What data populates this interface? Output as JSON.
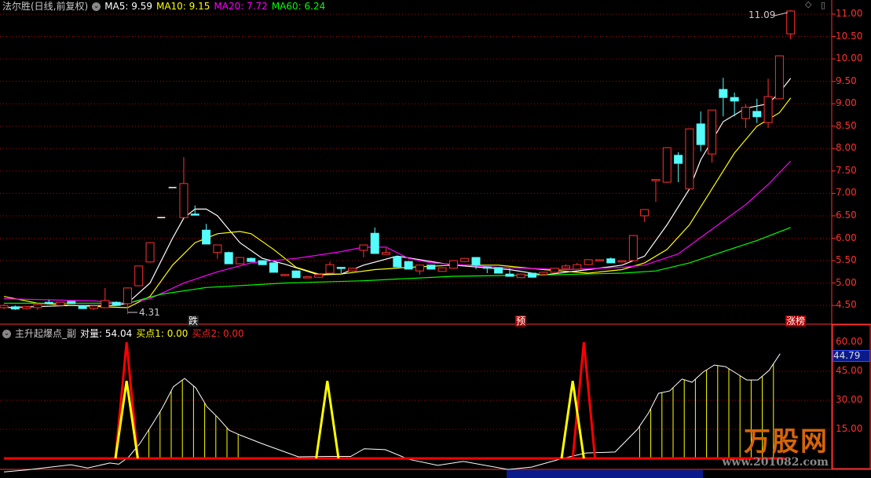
{
  "header": {
    "title": "法尔胜(日线,前复权)",
    "ma5": "MA5: 9.59",
    "ma10": "MA10: 9.15",
    "ma20": "MA20: 7.72",
    "ma60": "MA60: 6.24"
  },
  "indicator_header": {
    "name": "主升起爆点_副",
    "duiliang": "对量: 54.04",
    "buy1": "买点1: 0.00",
    "buy2": "买点2: 0.00"
  },
  "colors": {
    "up": "#ff3030",
    "down": "#54fcfc",
    "ma5": "#ffffff",
    "ma10": "#ffff00",
    "ma20": "#ff00ff",
    "ma60": "#00ff00",
    "grid": "#b00000",
    "axis": "#ff3030"
  },
  "markers": {
    "die": "跌",
    "yu": "预",
    "zhangbang": "涨榜",
    "high_label": "11.09",
    "low_label": "4.31"
  },
  "logo": {
    "text": "万股网",
    "url": "www.201082.com"
  },
  "lower_current_value": "44.79",
  "price_axis": {
    "min": 4.5,
    "max": 11.0,
    "step": 0.5,
    "labels": [
      "11.00",
      "10.50",
      "10.00",
      "9.50",
      "9.00",
      "8.50",
      "8.00",
      "7.50",
      "7.00",
      "6.50",
      "6.00",
      "5.50",
      "5.00",
      "4.50"
    ]
  },
  "indicator_axis": {
    "labels": [
      "60.00",
      "45.00",
      "30.00",
      "15.00"
    ]
  },
  "chart_data": [
    {
      "type": "candlestick",
      "ohlc": [
        [
          4.45,
          4.53,
          4.42,
          4.5
        ],
        [
          4.47,
          4.5,
          4.4,
          4.42
        ],
        [
          4.43,
          4.49,
          4.41,
          4.47
        ],
        [
          4.45,
          4.55,
          4.4,
          4.52
        ],
        [
          4.57,
          4.63,
          4.53,
          4.54
        ],
        [
          4.5,
          4.58,
          4.48,
          4.57
        ],
        [
          4.59,
          4.6,
          4.53,
          4.54
        ],
        [
          4.5,
          4.51,
          4.42,
          4.43
        ],
        [
          4.43,
          4.5,
          4.4,
          4.49
        ],
        [
          4.45,
          4.89,
          4.44,
          4.61
        ],
        [
          4.57,
          4.59,
          4.49,
          4.5
        ],
        [
          4.54,
          4.9,
          4.31,
          4.89
        ],
        [
          4.94,
          5.38,
          4.94,
          5.38
        ],
        [
          5.47,
          5.91,
          5.46,
          5.9
        ],
        [
          6.46,
          6.46,
          6.46,
          6.46
        ],
        [
          7.13,
          7.13,
          7.13,
          7.13
        ],
        [
          6.46,
          7.81,
          6.46,
          7.22
        ],
        [
          6.54,
          6.73,
          6.53,
          6.53
        ],
        [
          6.18,
          6.32,
          5.87,
          5.87
        ],
        [
          5.68,
          5.86,
          5.54,
          5.85
        ],
        [
          5.68,
          5.7,
          5.43,
          5.43
        ],
        [
          5.43,
          5.58,
          5.42,
          5.57
        ],
        [
          5.55,
          5.57,
          5.47,
          5.48
        ],
        [
          5.5,
          5.51,
          5.4,
          5.41
        ],
        [
          5.45,
          5.46,
          5.24,
          5.24
        ],
        [
          5.17,
          5.2,
          5.16,
          5.19
        ],
        [
          5.27,
          5.28,
          5.12,
          5.12
        ],
        [
          5.12,
          5.15,
          5.11,
          5.14
        ],
        [
          5.13,
          5.2,
          5.12,
          5.19
        ],
        [
          5.22,
          5.48,
          5.21,
          5.41
        ],
        [
          5.35,
          5.36,
          5.22,
          5.33
        ],
        [
          5.27,
          5.34,
          5.26,
          5.33
        ],
        [
          5.73,
          5.86,
          5.57,
          5.85
        ],
        [
          6.11,
          6.24,
          5.65,
          5.66
        ],
        [
          5.64,
          5.78,
          5.63,
          5.68
        ],
        [
          5.59,
          5.6,
          5.36,
          5.36
        ],
        [
          5.48,
          5.49,
          5.31,
          5.31
        ],
        [
          5.27,
          5.41,
          5.19,
          5.4
        ],
        [
          5.4,
          5.41,
          5.31,
          5.31
        ],
        [
          5.26,
          5.35,
          5.25,
          5.34
        ],
        [
          5.33,
          5.51,
          5.32,
          5.5
        ],
        [
          5.48,
          5.56,
          5.47,
          5.55
        ],
        [
          5.57,
          5.58,
          5.31,
          5.4
        ],
        [
          5.36,
          5.37,
          5.22,
          5.33
        ],
        [
          5.34,
          5.35,
          5.22,
          5.22
        ],
        [
          5.2,
          5.33,
          5.14,
          5.15
        ],
        [
          5.12,
          5.21,
          5.11,
          5.2
        ],
        [
          5.22,
          5.23,
          5.12,
          5.13
        ],
        [
          5.19,
          5.25,
          5.18,
          5.24
        ],
        [
          5.24,
          5.34,
          5.23,
          5.33
        ],
        [
          5.33,
          5.42,
          5.32,
          5.38
        ],
        [
          5.31,
          5.45,
          5.3,
          5.41
        ],
        [
          5.41,
          5.53,
          5.4,
          5.52
        ],
        [
          5.51,
          5.53,
          5.5,
          5.52
        ],
        [
          5.54,
          5.57,
          5.44,
          5.45
        ],
        [
          5.47,
          5.51,
          5.46,
          5.5
        ],
        [
          5.5,
          6.07,
          5.49,
          6.06
        ],
        [
          6.5,
          6.65,
          6.36,
          6.64
        ],
        [
          7.3,
          7.31,
          6.81,
          7.31
        ],
        [
          7.25,
          8.03,
          7.24,
          8.02
        ],
        [
          7.85,
          7.92,
          7.25,
          7.67
        ],
        [
          7.1,
          8.45,
          7.09,
          8.44
        ],
        [
          8.55,
          8.83,
          7.94,
          8.09
        ],
        [
          7.88,
          8.86,
          7.69,
          8.86
        ],
        [
          9.32,
          9.58,
          8.72,
          9.14
        ],
        [
          9.14,
          9.25,
          8.72,
          9.06
        ],
        [
          8.67,
          8.99,
          8.46,
          8.92
        ],
        [
          8.83,
          9.11,
          8.57,
          8.71
        ],
        [
          8.58,
          9.56,
          8.46,
          9.16
        ],
        [
          9.11,
          10.08,
          9.1,
          10.07
        ],
        [
          10.56,
          11.09,
          10.44,
          11.07
        ]
      ],
      "ma": {
        "MA5": [
          [
            0,
            4.45
          ],
          [
            6,
            4.5
          ],
          [
            10,
            4.5
          ],
          [
            11,
            4.55
          ],
          [
            13,
            5.0
          ],
          [
            15,
            6.0
          ],
          [
            16,
            6.45
          ],
          [
            17,
            6.65
          ],
          [
            18,
            6.65
          ],
          [
            19,
            6.5
          ],
          [
            20,
            6.2
          ],
          [
            21,
            5.9
          ],
          [
            23,
            5.55
          ],
          [
            25,
            5.42
          ],
          [
            28,
            5.18
          ],
          [
            30,
            5.2
          ],
          [
            32,
            5.4
          ],
          [
            35,
            5.6
          ],
          [
            37,
            5.52
          ],
          [
            40,
            5.4
          ],
          [
            45,
            5.3
          ],
          [
            48,
            5.18
          ],
          [
            52,
            5.3
          ],
          [
            55,
            5.4
          ],
          [
            57,
            5.6
          ],
          [
            59,
            6.3
          ],
          [
            61,
            7.1
          ],
          [
            62,
            7.75
          ],
          [
            64,
            8.6
          ],
          [
            66,
            8.9
          ],
          [
            68,
            9.0
          ],
          [
            69,
            9.25
          ],
          [
            70,
            9.57
          ]
        ],
        "MA10": [
          [
            0,
            4.7
          ],
          [
            3,
            4.55
          ],
          [
            6,
            4.5
          ],
          [
            11,
            4.45
          ],
          [
            13,
            4.7
          ],
          [
            15,
            5.4
          ],
          [
            17,
            5.9
          ],
          [
            19,
            6.1
          ],
          [
            21,
            6.15
          ],
          [
            22,
            6.1
          ],
          [
            24,
            5.75
          ],
          [
            26,
            5.35
          ],
          [
            28,
            5.2
          ],
          [
            30,
            5.2
          ],
          [
            33,
            5.3
          ],
          [
            36,
            5.35
          ],
          [
            40,
            5.4
          ],
          [
            44,
            5.4
          ],
          [
            48,
            5.3
          ],
          [
            52,
            5.22
          ],
          [
            55,
            5.3
          ],
          [
            57,
            5.45
          ],
          [
            59,
            5.75
          ],
          [
            61,
            6.3
          ],
          [
            63,
            7.1
          ],
          [
            65,
            7.9
          ],
          [
            67,
            8.5
          ],
          [
            69,
            8.8
          ],
          [
            70,
            9.13
          ]
        ],
        "MA20": [
          [
            0,
            4.65
          ],
          [
            8,
            4.6
          ],
          [
            11,
            4.55
          ],
          [
            13,
            4.65
          ],
          [
            16,
            5.0
          ],
          [
            19,
            5.25
          ],
          [
            22,
            5.45
          ],
          [
            26,
            5.55
          ],
          [
            30,
            5.7
          ],
          [
            32,
            5.8
          ],
          [
            34,
            5.8
          ],
          [
            36,
            5.55
          ],
          [
            38,
            5.45
          ],
          [
            44,
            5.35
          ],
          [
            50,
            5.3
          ],
          [
            55,
            5.35
          ],
          [
            57,
            5.4
          ],
          [
            60,
            5.65
          ],
          [
            63,
            6.2
          ],
          [
            66,
            6.75
          ],
          [
            68,
            7.2
          ],
          [
            70,
            7.72
          ]
        ],
        "MA60": [
          [
            0,
            4.55
          ],
          [
            11,
            4.55
          ],
          [
            14,
            4.75
          ],
          [
            18,
            4.9
          ],
          [
            25,
            5.0
          ],
          [
            32,
            5.05
          ],
          [
            40,
            5.15
          ],
          [
            48,
            5.18
          ],
          [
            55,
            5.22
          ],
          [
            58,
            5.27
          ],
          [
            61,
            5.45
          ],
          [
            64,
            5.7
          ],
          [
            67,
            5.95
          ],
          [
            70,
            6.24
          ]
        ]
      },
      "ylim": [
        4.3,
        11.2
      ]
    },
    {
      "type": "line",
      "duiliang": [
        [
          0,
          -7
        ],
        [
          2,
          -6
        ],
        [
          6,
          -3.3
        ],
        [
          7.5,
          -5
        ],
        [
          9.5,
          -2.4
        ],
        [
          10.3,
          -3
        ],
        [
          11.2,
          0.8
        ],
        [
          12.2,
          7.7
        ],
        [
          13.2,
          16.6
        ],
        [
          14.2,
          26
        ],
        [
          15.2,
          37
        ],
        [
          16.2,
          41.3
        ],
        [
          17.2,
          36.5
        ],
        [
          18.2,
          26.7
        ],
        [
          19.2,
          21
        ],
        [
          20.2,
          14.5
        ],
        [
          21.2,
          12
        ],
        [
          23.1,
          7.7
        ],
        [
          26.4,
          0.8
        ],
        [
          29.2,
          1
        ],
        [
          31.1,
          1
        ],
        [
          32.3,
          5
        ],
        [
          34.2,
          4.5
        ],
        [
          36.3,
          -0.5
        ],
        [
          38.9,
          -3.6
        ],
        [
          41.2,
          -1.6
        ],
        [
          45.2,
          -5.7
        ],
        [
          47.3,
          -4.5
        ],
        [
          50.1,
          0
        ],
        [
          52.2,
          2.8
        ],
        [
          54.8,
          3.3
        ],
        [
          56.8,
          15
        ],
        [
          57.8,
          23.5
        ],
        [
          58.7,
          33.6
        ],
        [
          59.7,
          34.8
        ],
        [
          60.8,
          41
        ],
        [
          61.7,
          39.3
        ],
        [
          62.7,
          44.6
        ],
        [
          63.7,
          48.2
        ],
        [
          64.7,
          47.4
        ],
        [
          65.6,
          44.2
        ],
        [
          66.6,
          40.5
        ],
        [
          67.6,
          40.5
        ],
        [
          68.6,
          45.4
        ],
        [
          69.6,
          54.04
        ]
      ],
      "bar_ranges": [
        [
          13,
          21
        ],
        [
          57,
          69
        ]
      ],
      "buy1_spikes": [
        [
          11,
          40
        ],
        [
          29,
          40
        ],
        [
          51,
          40
        ]
      ],
      "buy2_spikes": [
        [
          11,
          60
        ],
        [
          52,
          60
        ]
      ],
      "ylim": [
        -10,
        66
      ]
    }
  ]
}
